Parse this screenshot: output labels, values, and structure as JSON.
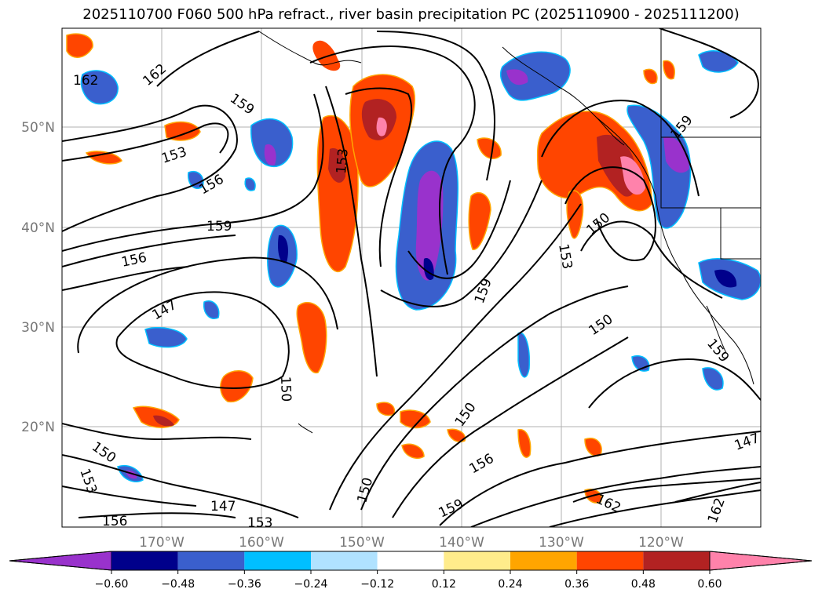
{
  "title": "2025110700 F060 500 hPa refract., river basin precipitation PC (2025110900 - 2025111200)",
  "lat_ticks": [
    "50°N",
    "40°N",
    "30°N",
    "20°N"
  ],
  "lon_ticks": [
    "170°W",
    "160°W",
    "150°W",
    "140°W",
    "130°W",
    "120°W"
  ],
  "contour_labels": [
    "162",
    "159",
    "153",
    "156",
    "159",
    "156",
    "147",
    "153",
    "159",
    "150",
    "153",
    "159",
    "150",
    "159",
    "150",
    "150",
    "156",
    "159",
    "150",
    "147",
    "162",
    "153",
    "156",
    "162",
    "147"
  ],
  "colorbar": {
    "colors": [
      "#9932CC",
      "#00008B",
      "#3A5FCD",
      "#00BFFF",
      "#B0E2FF",
      "#FFFFFF",
      "#FFEC8B",
      "#FFA500",
      "#FF4500",
      "#B22222",
      "#FF82AB"
    ],
    "labels": [
      "−0.60",
      "−0.48",
      "−0.36",
      "−0.24",
      "−0.12",
      "0.12",
      "0.24",
      "0.36",
      "0.48",
      "0.60"
    ]
  }
}
